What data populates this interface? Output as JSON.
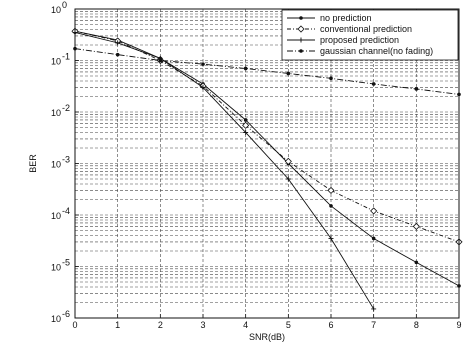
{
  "chart_data": {
    "type": "line",
    "xlabel": "SNR(dB)",
    "ylabel": "BER",
    "xlim": [
      0,
      9
    ],
    "ylim_log10": [
      -6,
      0
    ],
    "y_scale": "log",
    "grid": "on",
    "legend_position": "top-right",
    "x_ticks": [
      "0",
      "1",
      "2",
      "3",
      "4",
      "5",
      "6",
      "7",
      "8",
      "9"
    ],
    "y_ticks": [
      {
        "exp": 0,
        "label": "10",
        "sup": "0"
      },
      {
        "exp": -1,
        "label": "10",
        "sup": "-1"
      },
      {
        "exp": -2,
        "label": "10",
        "sup": "-2"
      },
      {
        "exp": -3,
        "label": "10",
        "sup": "-3"
      },
      {
        "exp": -4,
        "label": "10",
        "sup": "-4"
      },
      {
        "exp": -5,
        "label": "10",
        "sup": "-5"
      },
      {
        "exp": -6,
        "label": "10",
        "sup": "-6"
      }
    ],
    "series": [
      {
        "name": "no prediction",
        "marker": "dot",
        "dash": "",
        "x": [
          0,
          1,
          2,
          3,
          4,
          5,
          6,
          7,
          8,
          9
        ],
        "y": [
          0.37,
          0.25,
          0.11,
          0.035,
          0.007,
          0.001,
          0.00015,
          3.5e-05,
          1.2e-05,
          4.2e-06
        ]
      },
      {
        "name": "conventional prediction",
        "marker": "diamond",
        "dash": "4 2 1 2",
        "x": [
          0,
          1,
          2,
          3,
          4,
          5,
          6,
          7,
          8,
          9
        ],
        "y": [
          0.37,
          0.24,
          0.1,
          0.032,
          0.0055,
          0.0011,
          0.0003,
          0.00012,
          6e-05,
          3e-05
        ]
      },
      {
        "name": "proposed prediction",
        "marker": "plus",
        "dash": "",
        "x": [
          0,
          1,
          2,
          3,
          4,
          5,
          6,
          7
        ],
        "y": [
          0.35,
          0.22,
          0.11,
          0.03,
          0.004,
          0.0005,
          3.5e-05,
          1.5e-06
        ]
      },
      {
        "name": "gaussian channel(no fading)",
        "marker": "dot",
        "dash": "6 2 1 2",
        "x": [
          0,
          1,
          2,
          3,
          4,
          5,
          6,
          7,
          8,
          9
        ],
        "y": [
          0.17,
          0.13,
          0.1,
          0.085,
          0.07,
          0.056,
          0.045,
          0.035,
          0.028,
          0.022
        ]
      }
    ]
  }
}
